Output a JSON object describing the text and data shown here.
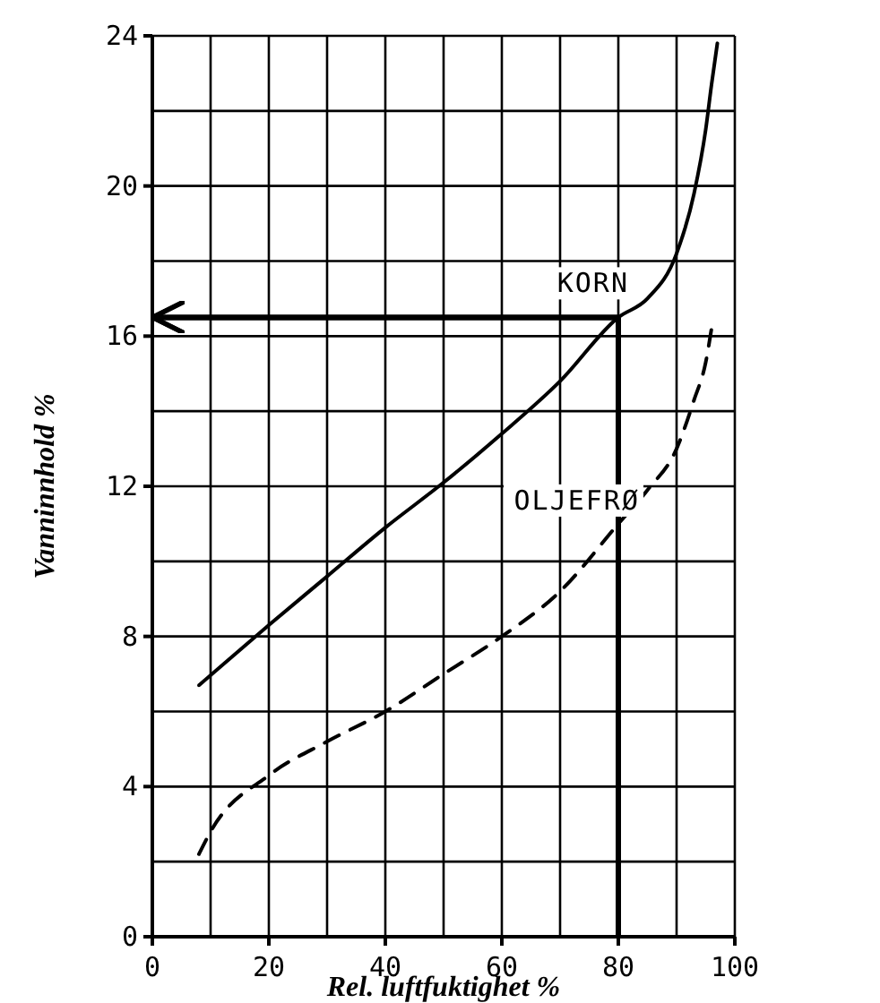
{
  "chart_data": {
    "type": "line",
    "xlabel": "Rel. luftfuktighet %",
    "ylabel": "Vanninnhold %",
    "xlim": [
      0,
      100
    ],
    "ylim": [
      0,
      24
    ],
    "xticks": [
      0,
      {
        "value": 10,
        "label": null
      },
      20,
      {
        "value": 30,
        "label": null
      },
      40,
      {
        "value": 50,
        "label": null
      },
      60,
      {
        "value": 70,
        "label": null
      },
      80,
      {
        "value": 90,
        "label": null
      },
      100
    ],
    "yticks": [
      0,
      {
        "value": 2,
        "label": null
      },
      4,
      {
        "value": 6,
        "label": null
      },
      8,
      {
        "value": 10,
        "label": null
      },
      12,
      {
        "value": 14,
        "label": null
      },
      16,
      {
        "value": 18,
        "label": null
      },
      20,
      {
        "value": 22,
        "label": null
      },
      24
    ],
    "grid": true,
    "series": [
      {
        "name": "KORN",
        "color": "#000000",
        "line_style": "solid",
        "x": [
          8,
          20,
          30,
          40,
          50,
          60,
          70,
          80,
          85,
          90,
          93,
          95,
          96,
          97
        ],
        "values": [
          6.7,
          8.3,
          9.6,
          10.9,
          12.1,
          13.4,
          14.8,
          16.5,
          17.0,
          18.2,
          19.8,
          21.5,
          22.7,
          23.8
        ]
      },
      {
        "name": "OLJEFRØ",
        "color": "#000000",
        "line_style": "dashed",
        "x": [
          8,
          10,
          20,
          30,
          40,
          50,
          60,
          70,
          80,
          85,
          90,
          93,
          95,
          96
        ],
        "values": [
          2.2,
          2.8,
          4.3,
          5.2,
          6.0,
          7.0,
          8.0,
          9.2,
          11.0,
          11.9,
          13.0,
          14.3,
          15.3,
          16.2
        ]
      }
    ],
    "ref_lines": [
      {
        "axis": "y",
        "value": 16.5
      },
      {
        "axis": "x",
        "value": 80
      }
    ]
  }
}
